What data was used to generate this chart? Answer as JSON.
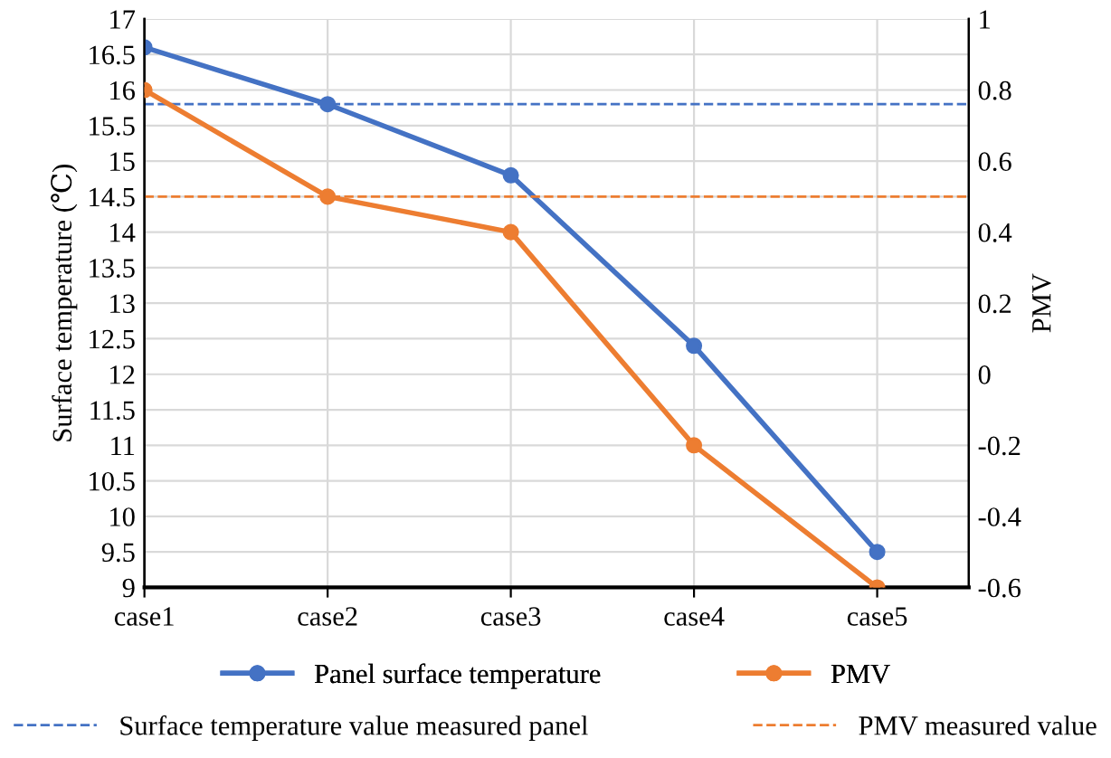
{
  "chart_data": {
    "type": "line",
    "categories": [
      "case1",
      "case2",
      "case3",
      "case4",
      "case5"
    ],
    "ylabel": "Surface temperature (℃)",
    "y2label": "PMV",
    "series": [
      {
        "name": "Panel surface temperature",
        "color": "#4472c4",
        "values": [
          16.6,
          15.8,
          14.8,
          12.4,
          9.5
        ]
      },
      {
        "name": "PMV",
        "color": "#ed7d31",
        "axis": "y2",
        "values": [
          0.8,
          0.5,
          0.4,
          -0.2,
          -0.6
        ]
      }
    ],
    "ylim": [
      9,
      17
    ],
    "yticks": [
      9,
      9.5,
      10,
      10.5,
      11,
      11.5,
      12,
      12.5,
      13,
      13.5,
      14,
      14.5,
      15,
      15.5,
      16,
      16.5,
      17
    ],
    "y2lim": [
      -0.6,
      1
    ],
    "y2ticks": [
      -0.6,
      -0.4,
      -0.2,
      0,
      0.2,
      0.4,
      0.6,
      0.8,
      1
    ],
    "ref_lines": [
      {
        "axis": "y",
        "value": 15.8,
        "label": "Surface temperature value measured panel",
        "color": "#4472c4",
        "line_style": "dashed"
      },
      {
        "axis": "y2",
        "value": 0.5,
        "label": "PMV measured value",
        "color": "#ed7d31",
        "line_style": "dashed"
      }
    ],
    "grid": true,
    "legend": "bottom",
    "marker": "circle",
    "line_style": "solid"
  }
}
